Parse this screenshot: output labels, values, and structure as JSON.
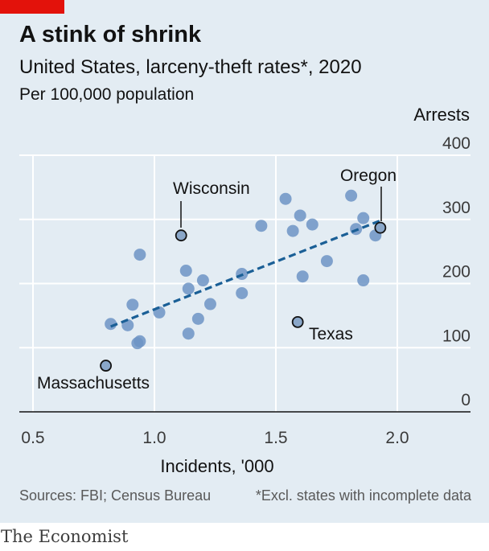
{
  "header": {
    "title": "A stink of shrink",
    "subtitle": "United States, larceny-theft rates*, 2020",
    "unit": "Per 100,000 population"
  },
  "footer": {
    "source": "Sources: FBI; Census Bureau",
    "footnote": "*Excl. states with incomplete data",
    "logo": "The Economist"
  },
  "colors": {
    "brand_red": "#e3120b",
    "background": "#e3ecf3",
    "points": "#6d94c4",
    "trend": "#1a5f96",
    "highlight": "#8aa7c9"
  },
  "chart_data": {
    "type": "scatter",
    "title": "A stink of shrink",
    "subtitle": "United States, larceny-theft rates*, 2020",
    "xlabel": "Incidents, '000",
    "ylabel": "Arrests",
    "xlim": [
      0.5,
      2.1
    ],
    "ylim": [
      0,
      400
    ],
    "x_ticks": [
      0.5,
      1.0,
      1.5,
      2.0
    ],
    "x_tick_labels": [
      "0.5",
      "1.0",
      "1.5",
      "2.0"
    ],
    "y_ticks": [
      0,
      100,
      200,
      300,
      400
    ],
    "y_tick_labels": [
      "0",
      "100",
      "200",
      "300",
      "400"
    ],
    "grid": true,
    "points": [
      {
        "x": 0.82,
        "y": 137
      },
      {
        "x": 0.91,
        "y": 167
      },
      {
        "x": 0.89,
        "y": 135
      },
      {
        "x": 0.94,
        "y": 110
      },
      {
        "x": 0.93,
        "y": 107
      },
      {
        "x": 0.94,
        "y": 245
      },
      {
        "x": 1.02,
        "y": 155
      },
      {
        "x": 1.13,
        "y": 220
      },
      {
        "x": 1.14,
        "y": 192
      },
      {
        "x": 1.2,
        "y": 205
      },
      {
        "x": 1.23,
        "y": 168
      },
      {
        "x": 1.18,
        "y": 145
      },
      {
        "x": 1.14,
        "y": 122
      },
      {
        "x": 1.36,
        "y": 215
      },
      {
        "x": 1.36,
        "y": 185
      },
      {
        "x": 1.44,
        "y": 290
      },
      {
        "x": 1.54,
        "y": 332
      },
      {
        "x": 1.6,
        "y": 306
      },
      {
        "x": 1.57,
        "y": 282
      },
      {
        "x": 1.65,
        "y": 292
      },
      {
        "x": 1.61,
        "y": 211
      },
      {
        "x": 1.71,
        "y": 235
      },
      {
        "x": 1.81,
        "y": 337
      },
      {
        "x": 1.86,
        "y": 302
      },
      {
        "x": 1.83,
        "y": 285
      },
      {
        "x": 1.91,
        "y": 275
      },
      {
        "x": 1.86,
        "y": 205
      }
    ],
    "highlighted": [
      {
        "label": "Wisconsin",
        "x": 1.11,
        "y": 275
      },
      {
        "label": "Oregon",
        "x": 1.93,
        "y": 287
      },
      {
        "label": "Texas",
        "x": 1.59,
        "y": 140
      },
      {
        "label": "Massachusetts",
        "x": 0.8,
        "y": 72
      }
    ],
    "trendline": {
      "x": [
        0.82,
        1.93
      ],
      "y": [
        133,
        298
      ]
    }
  }
}
